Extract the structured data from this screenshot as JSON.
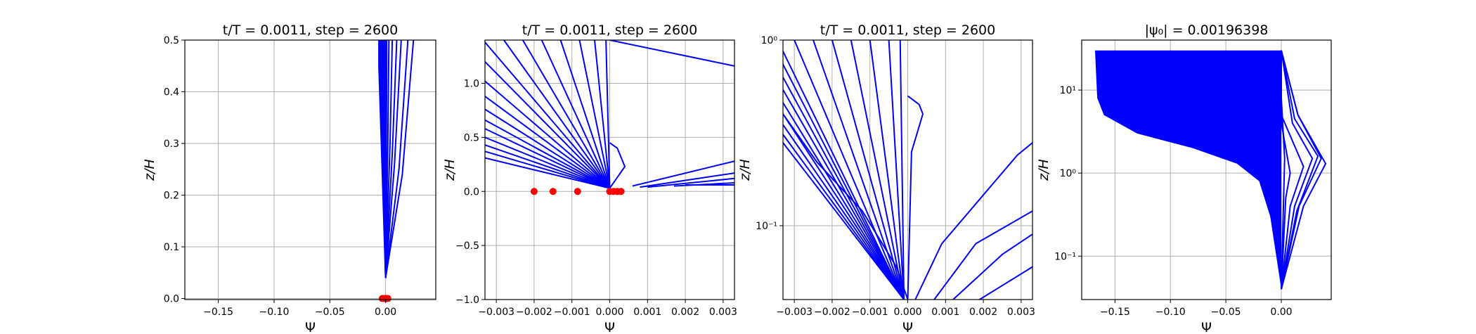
{
  "chart_data": [
    {
      "type": "line",
      "title": "t/T = 0.0011, step = 2600",
      "xlabel": "Ψ",
      "ylabel": "z/H",
      "xscale": "linear",
      "yscale": "linear",
      "xlim": [
        -0.18,
        0.045
      ],
      "ylim": [
        -0.002,
        0.5
      ],
      "xticks": [
        -0.15,
        -0.1,
        -0.05,
        0.0
      ],
      "xtick_labels": [
        "−0.15",
        "−0.10",
        "−0.05",
        "0.00"
      ],
      "yticks": [
        0.0,
        0.1,
        0.2,
        0.3,
        0.4,
        0.5
      ],
      "ytick_labels": [
        "0.0",
        "0.1",
        "0.2",
        "0.3",
        "0.4",
        "0.5"
      ],
      "grid": true,
      "series_color": "#0000ff",
      "marker_color": "#ff0000",
      "profile_count": 14,
      "profiles": [
        {
          "name": "p01",
          "x": [
            0.0,
            -0.006,
            -0.006
          ],
          "y": [
            0.04,
            0.45,
            0.5
          ]
        },
        {
          "name": "p02",
          "x": [
            0.0,
            -0.005,
            -0.005
          ],
          "y": [
            0.04,
            0.45,
            0.5
          ]
        },
        {
          "name": "p03",
          "x": [
            0.0,
            -0.004,
            -0.004
          ],
          "y": [
            0.04,
            0.45,
            0.5
          ]
        },
        {
          "name": "p04",
          "x": [
            0.0,
            -0.003,
            -0.003
          ],
          "y": [
            0.04,
            0.45,
            0.5
          ]
        },
        {
          "name": "p05",
          "x": [
            0.0,
            -0.002,
            -0.002
          ],
          "y": [
            0.04,
            0.45,
            0.5
          ]
        },
        {
          "name": "p06",
          "x": [
            0.0,
            -0.001,
            -0.001
          ],
          "y": [
            0.04,
            0.45,
            0.5
          ]
        },
        {
          "name": "p07",
          "x": [
            0.0,
            0.0,
            0.0
          ],
          "y": [
            0.04,
            0.45,
            0.5
          ]
        },
        {
          "name": "p08",
          "x": [
            0.0,
            0.001,
            0.001
          ],
          "y": [
            0.04,
            0.45,
            0.5
          ]
        },
        {
          "name": "p09",
          "x": [
            0.0,
            0.002,
            0.003
          ],
          "y": [
            0.04,
            0.3,
            0.5
          ]
        },
        {
          "name": "p10",
          "x": [
            0.0,
            0.004,
            0.006
          ],
          "y": [
            0.04,
            0.3,
            0.5
          ]
        },
        {
          "name": "p11",
          "x": [
            0.0,
            0.006,
            0.01
          ],
          "y": [
            0.04,
            0.28,
            0.5
          ]
        },
        {
          "name": "p12",
          "x": [
            0.0,
            0.008,
            0.014
          ],
          "y": [
            0.04,
            0.26,
            0.5
          ]
        },
        {
          "name": "p13",
          "x": [
            0.0,
            0.012,
            0.02
          ],
          "y": [
            0.04,
            0.25,
            0.5
          ]
        },
        {
          "name": "p14",
          "x": [
            0.0,
            0.015,
            0.025
          ],
          "y": [
            0.04,
            0.24,
            0.5
          ]
        }
      ],
      "markers": {
        "x": [
          -0.003,
          -0.002,
          -0.001,
          0.0,
          0.001,
          0.002,
          0.0005,
          -0.0005
        ],
        "y": [
          0,
          0,
          0,
          0,
          0,
          0,
          0,
          0
        ]
      }
    },
    {
      "type": "line",
      "title": "t/T = 0.0011, step = 2600",
      "xlabel": "Ψ",
      "ylabel": "z/H",
      "xscale": "linear",
      "yscale": "linear",
      "xlim": [
        -0.0033,
        0.0033
      ],
      "ylim": [
        -1.0,
        1.4
      ],
      "xticks": [
        -0.003,
        -0.002,
        -0.001,
        0.0,
        0.001,
        0.002,
        0.003
      ],
      "xtick_labels": [
        "−0.003",
        "−0.002",
        "−0.001",
        "0.000",
        "0.001",
        "0.002",
        "0.003"
      ],
      "yticks": [
        -1.0,
        -0.5,
        0.0,
        0.5,
        1.0
      ],
      "ytick_labels": [
        "−1.0",
        "−0.5",
        "0.0",
        "0.5",
        "1.0"
      ],
      "grid": true,
      "series_color": "#0000ff",
      "marker_color": "#ff0000",
      "profiles": [
        {
          "name": "fan-01",
          "x": [
            0.0,
            -0.0033
          ],
          "y": [
            0.03,
            0.31
          ]
        },
        {
          "name": "fan-02",
          "x": [
            0.0,
            -0.0033
          ],
          "y": [
            0.03,
            0.37
          ]
        },
        {
          "name": "fan-03",
          "x": [
            0.0,
            -0.0033
          ],
          "y": [
            0.03,
            0.43
          ]
        },
        {
          "name": "fan-04",
          "x": [
            0.0,
            -0.0033
          ],
          "y": [
            0.03,
            0.5
          ]
        },
        {
          "name": "fan-05",
          "x": [
            0.0,
            -0.0033
          ],
          "y": [
            0.03,
            0.58
          ]
        },
        {
          "name": "fan-06",
          "x": [
            0.0,
            -0.0033
          ],
          "y": [
            0.03,
            0.66
          ]
        },
        {
          "name": "fan-07",
          "x": [
            0.0,
            -0.0033
          ],
          "y": [
            0.03,
            0.76
          ]
        },
        {
          "name": "fan-08",
          "x": [
            0.0,
            -0.0033
          ],
          "y": [
            0.03,
            0.88
          ]
        },
        {
          "name": "fan-09",
          "x": [
            0.0,
            -0.0033
          ],
          "y": [
            0.03,
            1.02
          ]
        },
        {
          "name": "fan-10",
          "x": [
            0.0,
            -0.0033
          ],
          "y": [
            0.03,
            1.2
          ]
        },
        {
          "name": "fan-11",
          "x": [
            0.0,
            -0.0033
          ],
          "y": [
            0.03,
            1.38
          ]
        },
        {
          "name": "fan-12",
          "x": [
            0.0,
            -0.0028
          ],
          "y": [
            0.03,
            1.4
          ]
        },
        {
          "name": "fan-13",
          "x": [
            0.0,
            -0.0023
          ],
          "y": [
            0.03,
            1.4
          ]
        },
        {
          "name": "fan-14",
          "x": [
            0.0,
            -0.0018
          ],
          "y": [
            0.03,
            1.4
          ]
        },
        {
          "name": "fan-15",
          "x": [
            0.0,
            -0.0013
          ],
          "y": [
            0.03,
            1.4
          ]
        },
        {
          "name": "fan-16",
          "x": [
            0.0,
            -0.0008
          ],
          "y": [
            0.03,
            1.4
          ]
        },
        {
          "name": "fan-17",
          "x": [
            0.0,
            -0.0004
          ],
          "y": [
            0.03,
            1.4
          ]
        },
        {
          "name": "fan-18",
          "x": [
            0.0,
            -0.0001
          ],
          "y": [
            0.03,
            1.4
          ]
        },
        {
          "name": "bulge",
          "x": [
            0.0,
            0.0004,
            0.0002,
            0.0
          ],
          "y": [
            0.03,
            0.23,
            0.4,
            0.45
          ]
        },
        {
          "name": "far-01",
          "x": [
            0.0,
            0.0033
          ],
          "y": [
            1.4,
            1.16
          ]
        },
        {
          "name": "low-01",
          "x": [
            0.0006,
            0.0033
          ],
          "y": [
            0.05,
            0.28
          ]
        },
        {
          "name": "low-02",
          "x": [
            0.0008,
            0.0033
          ],
          "y": [
            0.04,
            0.17
          ]
        },
        {
          "name": "low-03",
          "x": [
            0.001,
            0.0033
          ],
          "y": [
            0.04,
            0.12
          ]
        },
        {
          "name": "low-04",
          "x": [
            0.0017,
            0.0033
          ],
          "y": [
            0.05,
            0.08
          ]
        },
        {
          "name": "low-05",
          "x": [
            0.002,
            0.0033
          ],
          "y": [
            0.06,
            0.06
          ]
        }
      ],
      "markers": {
        "x": [
          -0.002,
          -0.0015,
          -0.00085,
          0.0,
          0.0001,
          0.0002,
          0.0003,
          0.0002
        ],
        "y": [
          0,
          0,
          0,
          0,
          0,
          0,
          0,
          0
        ]
      }
    },
    {
      "type": "line",
      "title": "t/T = 0.0011, step = 2600",
      "xlabel": "Ψ",
      "ylabel": "z/H",
      "xscale": "linear",
      "yscale": "log",
      "xlim": [
        -0.0033,
        0.0033
      ],
      "ylim": [
        0.04,
        1.0
      ],
      "xticks": [
        -0.003,
        -0.002,
        -0.001,
        0.0,
        0.001,
        0.002,
        0.003
      ],
      "xtick_labels": [
        "−0.003",
        "−0.002",
        "−0.001",
        "0.000",
        "0.001",
        "0.002",
        "0.003"
      ],
      "yticks": [
        0.1,
        1.0
      ],
      "ytick_labels": [
        "10⁻¹",
        "10⁰"
      ],
      "grid": true,
      "series_color": "#0000ff",
      "profiles": [
        {
          "name": "lf-01",
          "x": [
            -0.0001,
            -0.0033
          ],
          "y": [
            0.04,
            0.28
          ]
        },
        {
          "name": "lf-02",
          "x": [
            -0.0001,
            -0.0033
          ],
          "y": [
            0.04,
            0.31
          ]
        },
        {
          "name": "lf-03",
          "x": [
            -0.0001,
            -0.0033
          ],
          "y": [
            0.04,
            0.35
          ]
        },
        {
          "name": "lf-04",
          "x": [
            -0.0001,
            -0.0033
          ],
          "y": [
            0.04,
            0.4
          ]
        },
        {
          "name": "lf-05",
          "x": [
            -0.0001,
            -0.0033
          ],
          "y": [
            0.04,
            0.46
          ]
        },
        {
          "name": "lf-06",
          "x": [
            -0.0001,
            -0.0033
          ],
          "y": [
            0.04,
            0.54
          ]
        },
        {
          "name": "lf-07",
          "x": [
            -0.0001,
            -0.0033
          ],
          "y": [
            0.04,
            0.63
          ]
        },
        {
          "name": "lf-08",
          "x": [
            -0.0001,
            -0.0033
          ],
          "y": [
            0.04,
            0.74
          ]
        },
        {
          "name": "lf-09",
          "x": [
            -0.0001,
            -0.0033
          ],
          "y": [
            0.04,
            0.87
          ]
        },
        {
          "name": "lf-10",
          "x": [
            -0.0001,
            -0.003
          ],
          "y": [
            0.04,
            1.0
          ]
        },
        {
          "name": "lf-11",
          "x": [
            -0.0001,
            -0.0025
          ],
          "y": [
            0.04,
            1.0
          ]
        },
        {
          "name": "lf-12",
          "x": [
            -0.0001,
            -0.002
          ],
          "y": [
            0.04,
            1.0
          ]
        },
        {
          "name": "lf-13",
          "x": [
            -0.0001,
            -0.0015
          ],
          "y": [
            0.04,
            1.0
          ]
        },
        {
          "name": "lf-14",
          "x": [
            -0.0001,
            -0.001
          ],
          "y": [
            0.04,
            1.0
          ]
        },
        {
          "name": "lf-15",
          "x": [
            -0.0001,
            -0.0005
          ],
          "y": [
            0.04,
            1.0
          ]
        },
        {
          "name": "lf-16",
          "x": [
            -0.0001,
            -0.0002
          ],
          "y": [
            0.04,
            1.0
          ]
        },
        {
          "name": "kink-01",
          "x": [
            -0.0033,
            -0.0024,
            -0.0012,
            -0.0003,
            0.0
          ],
          "y": [
            0.4,
            0.22,
            0.12,
            0.06,
            0.04
          ]
        },
        {
          "name": "bulge",
          "x": [
            0.0,
            0.0001,
            0.0004,
            0.0003,
            0.0
          ],
          "y": [
            0.04,
            0.25,
            0.4,
            0.45,
            0.5
          ]
        },
        {
          "name": "rf-01",
          "x": [
            0.0002,
            0.0009,
            0.0029,
            0.0033
          ],
          "y": [
            0.04,
            0.08,
            0.24,
            0.28
          ]
        },
        {
          "name": "rf-02",
          "x": [
            0.0007,
            0.0018,
            0.0033
          ],
          "y": [
            0.04,
            0.08,
            0.12
          ]
        },
        {
          "name": "rf-03",
          "x": [
            0.0012,
            0.0025,
            0.0033
          ],
          "y": [
            0.04,
            0.07,
            0.09
          ]
        },
        {
          "name": "rf-04",
          "x": [
            0.0019,
            0.0033
          ],
          "y": [
            0.04,
            0.06
          ]
        }
      ]
    },
    {
      "type": "line",
      "title": "|ψ₀| = 0.00196398",
      "xlabel": "Ψ",
      "ylabel": "z/H",
      "xscale": "linear",
      "yscale": "log",
      "xlim": [
        -0.18,
        0.045
      ],
      "ylim": [
        0.03,
        40
      ],
      "xticks": [
        -0.15,
        -0.1,
        -0.05,
        0.0
      ],
      "xtick_labels": [
        "−0.15",
        "−0.10",
        "−0.05",
        "0.00"
      ],
      "yticks": [
        0.1,
        1.0,
        10.0
      ],
      "ytick_labels": [
        "10⁻¹",
        "10⁰",
        "10¹"
      ],
      "grid": true,
      "series_color": "#0000ff",
      "envelope_outer": {
        "x": [
          -0.168,
          -0.166,
          -0.16,
          -0.13,
          -0.08,
          -0.04,
          -0.02,
          -0.01,
          0.0
        ],
        "y": [
          30,
          8,
          5,
          3,
          2,
          1.3,
          0.8,
          0.3,
          0.04
        ]
      },
      "profiles": [
        {
          "name": "r-01",
          "x": [
            0.0,
            0.003,
            0.0,
            0.0
          ],
          "y": [
            0.04,
            1.5,
            8,
            30
          ]
        },
        {
          "name": "r-02",
          "x": [
            0.0,
            0.004,
            0.008,
            0.0,
            0.0
          ],
          "y": [
            0.04,
            0.5,
            1.0,
            4,
            30
          ]
        },
        {
          "name": "r-03",
          "x": [
            0.0,
            0.008,
            0.02,
            0.0,
            0.0
          ],
          "y": [
            0.04,
            0.4,
            1.2,
            5,
            30
          ]
        },
        {
          "name": "r-04",
          "x": [
            0.0,
            0.012,
            0.028,
            0.01,
            0.0
          ],
          "y": [
            0.04,
            0.4,
            1.5,
            4,
            30
          ]
        },
        {
          "name": "r-05",
          "x": [
            0.0,
            0.014,
            0.033,
            0.012,
            0.0
          ],
          "y": [
            0.04,
            0.35,
            1.6,
            4.5,
            30
          ]
        },
        {
          "name": "r-06",
          "x": [
            0.0,
            0.016,
            0.036,
            0.015,
            0.0
          ],
          "y": [
            0.04,
            0.4,
            1.5,
            5,
            30
          ]
        },
        {
          "name": "r-07",
          "x": [
            0.0,
            0.02,
            0.04,
            0.015,
            0.0
          ],
          "y": [
            0.04,
            0.4,
            1.3,
            5,
            30
          ]
        }
      ]
    }
  ]
}
